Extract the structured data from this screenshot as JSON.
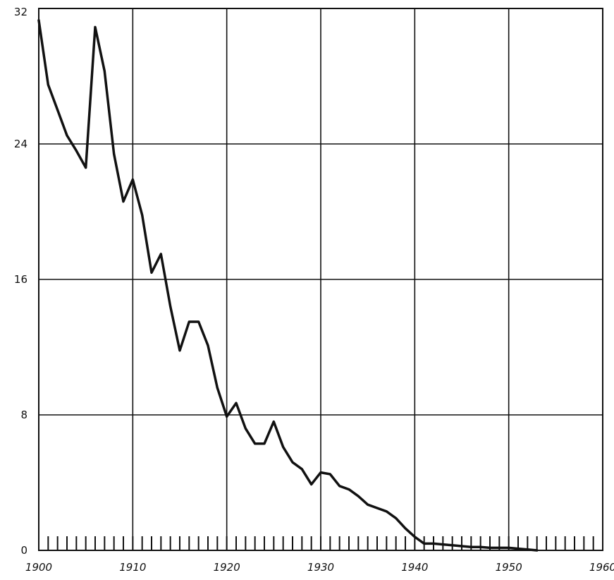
{
  "chart_data": {
    "type": "line",
    "title": "",
    "xlabel": "",
    "ylabel": "",
    "xlim": [
      1900,
      1960
    ],
    "ylim": [
      0,
      32
    ],
    "grid": true,
    "x_ticks": [
      1900,
      1910,
      1920,
      1930,
      1940,
      1950,
      1960
    ],
    "x_tick_labels": [
      "1900",
      "1910",
      "1920",
      "1930",
      "1940",
      "1950",
      "1960"
    ],
    "y_ticks": [
      0,
      8,
      16,
      24,
      32
    ],
    "y_tick_labels": [
      "0",
      "8",
      "16",
      "24",
      "32"
    ],
    "minor_x_ticks": "yearly",
    "series": [
      {
        "x": [
          1900,
          1901,
          1902,
          1903,
          1904,
          1905,
          1906,
          1907,
          1908,
          1909,
          1910,
          1911,
          1912,
          1913,
          1914,
          1915,
          1916,
          1917,
          1918,
          1919,
          1920,
          1921,
          1922,
          1923,
          1924,
          1925,
          1926,
          1927,
          1928,
          1929,
          1930,
          1931,
          1932,
          1933,
          1934,
          1935,
          1936,
          1937,
          1938,
          1939,
          1940,
          1941,
          1942,
          1943,
          1944,
          1945,
          1946,
          1947,
          1948,
          1949,
          1950,
          1951,
          1952,
          1953
        ],
        "values": [
          31.3,
          27.5,
          26.0,
          24.5,
          23.6,
          22.6,
          30.9,
          28.3,
          23.4,
          20.6,
          21.9,
          19.8,
          16.4,
          17.5,
          14.4,
          11.8,
          13.5,
          13.5,
          12.1,
          9.6,
          7.9,
          8.7,
          7.2,
          6.3,
          6.3,
          7.6,
          6.1,
          5.2,
          4.8,
          3.9,
          4.6,
          4.5,
          3.8,
          3.6,
          3.2,
          2.7,
          2.5,
          2.3,
          1.9,
          1.3,
          0.8,
          0.4,
          0.4,
          0.35,
          0.3,
          0.25,
          0.2,
          0.2,
          0.15,
          0.15,
          0.15,
          0.1,
          0.05,
          0.0
        ]
      }
    ]
  }
}
